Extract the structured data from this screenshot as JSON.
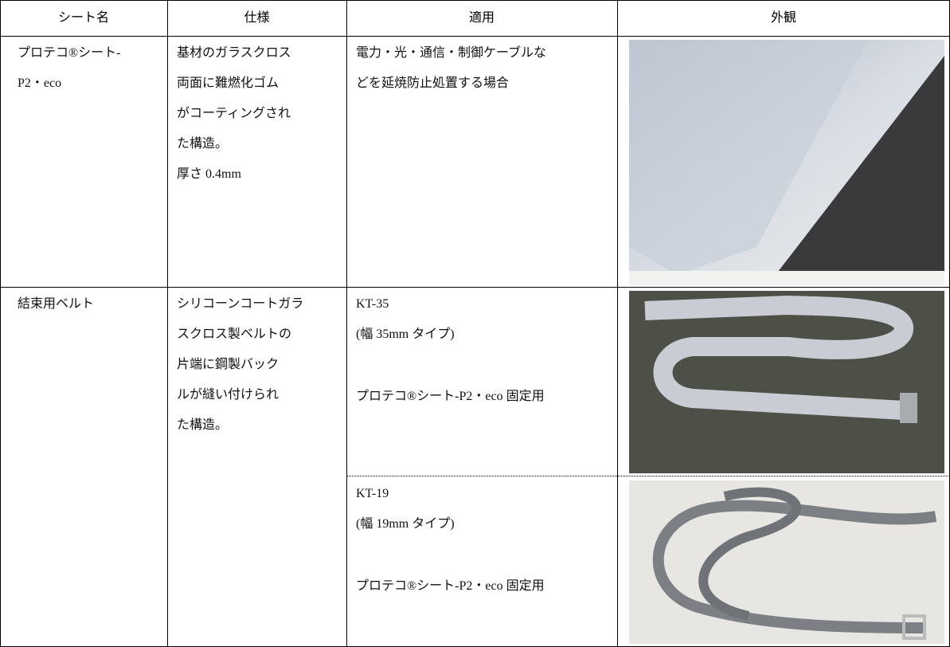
{
  "table": {
    "header": [
      "シート名",
      "仕様",
      "適用",
      "外観"
    ],
    "rows": [
      {
        "name_lines": [
          "プロテコ®シート-",
          "P2・eco"
        ],
        "spec_lines": [
          "基材のガラスクロス",
          "両面に難燃化ゴム",
          "がコーティングされ",
          "た構造。",
          "厚さ 0.4mm"
        ],
        "usage_lines": [
          "電力・光・通信・制御ケーブルな",
          "どを延焼防止処置する場合"
        ]
      },
      {
        "name_lines": [
          "結束用ベルト"
        ],
        "spec_lines": [
          "シリコーンコートガラ",
          "スクロス製ベルトの",
          "片端に鋼製バック",
          "ルが縫い付けられ",
          "た構造。"
        ],
        "variants": [
          {
            "model": "KT-35",
            "width": "(幅 35mm タイプ)",
            "usage": "プロテコ®シート-P2・eco 固定用"
          },
          {
            "model": "KT-19",
            "width": "(幅 19mm タイプ)",
            "usage": "プロテコ®シート-P2・eco 固定用"
          }
        ]
      }
    ]
  }
}
